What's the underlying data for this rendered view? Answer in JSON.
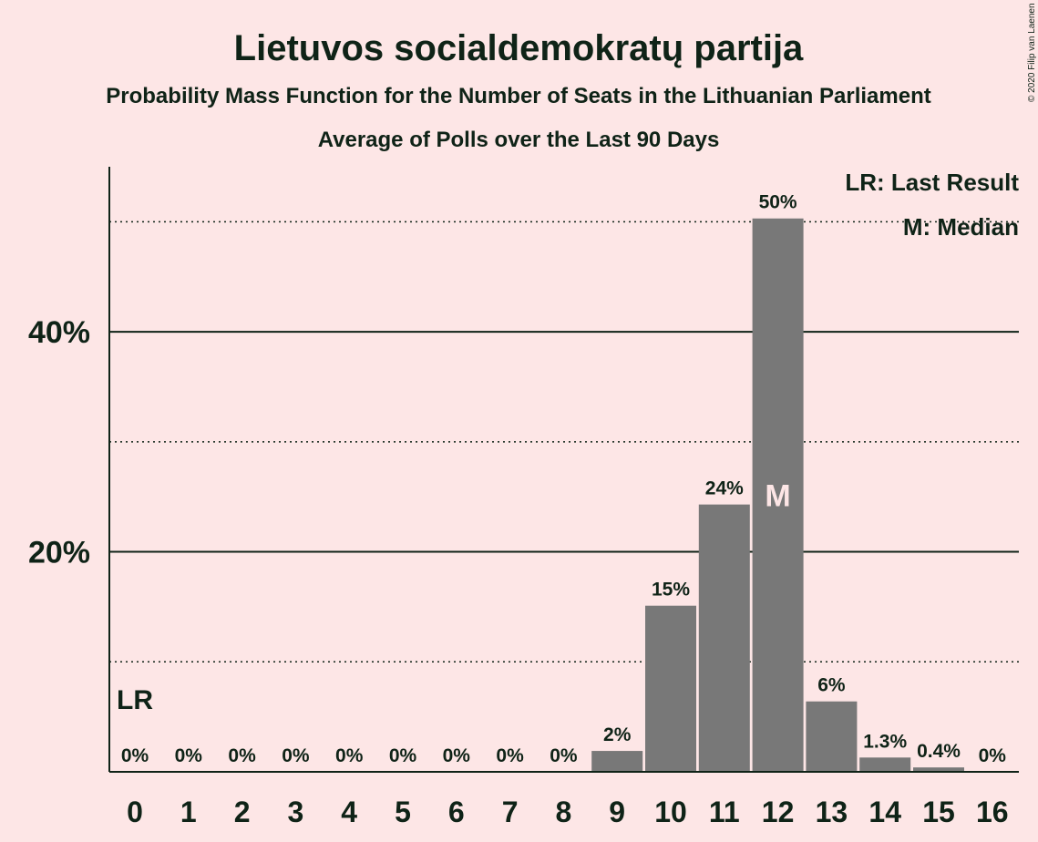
{
  "chart_data": {
    "type": "bar",
    "title": "Lietuvos socialdemokratų partija",
    "subtitle": "Probability Mass Function for the Number of Seats in the Lithuanian Parliament",
    "subtitle2": "Average of Polls over the Last 90 Days",
    "copyright": "© 2020 Filip van Laenen",
    "categories": [
      "0",
      "1",
      "2",
      "3",
      "4",
      "5",
      "6",
      "7",
      "8",
      "9",
      "10",
      "11",
      "12",
      "13",
      "14",
      "15",
      "16"
    ],
    "values": [
      0,
      0,
      0,
      0,
      0,
      0,
      0,
      0,
      0,
      1.9,
      15.1,
      24.3,
      50.3,
      6.4,
      1.3,
      0.4,
      0
    ],
    "value_labels": [
      "0%",
      "0%",
      "0%",
      "0%",
      "0%",
      "0%",
      "0%",
      "0%",
      "0%",
      "2%",
      "15%",
      "24%",
      "50%",
      "6%",
      "1.3%",
      "0.4%",
      "0%"
    ],
    "ylim": [
      0,
      55
    ],
    "yticks": [
      {
        "value": 20,
        "label": "20%"
      },
      {
        "value": 40,
        "label": "40%"
      }
    ],
    "dotted_gridlines": [
      10,
      30,
      50
    ],
    "last_result": {
      "index": 0,
      "label": "LR"
    },
    "median": {
      "index": 12,
      "label": "M"
    },
    "legend": {
      "position": "top-right",
      "items": [
        "LR: Last Result",
        "M: Median"
      ]
    },
    "colors": {
      "background": "#fde6e6",
      "bar": "#787878",
      "text": "#0f2317",
      "median_text": "#fde6e6"
    }
  }
}
